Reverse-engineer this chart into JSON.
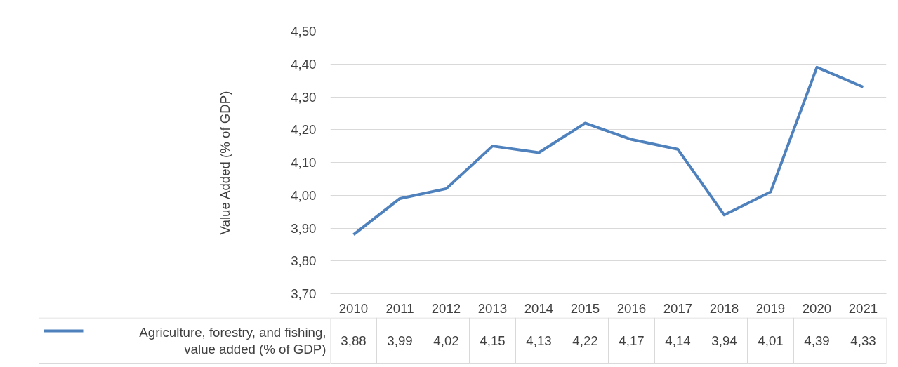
{
  "chart_data": {
    "type": "line",
    "ylabel": "Value Added (% of GDP)",
    "categories": [
      "2010",
      "2011",
      "2012",
      "2013",
      "2014",
      "2015",
      "2016",
      "2017",
      "2018",
      "2019",
      "2020",
      "2021"
    ],
    "series": [
      {
        "name": "Agriculture, forestry, and fishing, value added (% of GDP)",
        "color": "#4f81bd",
        "values": [
          3.88,
          3.99,
          4.02,
          4.15,
          4.13,
          4.22,
          4.17,
          4.14,
          3.94,
          4.01,
          4.39,
          4.33
        ],
        "value_labels": [
          "3,88",
          "3,99",
          "4,02",
          "4,15",
          "4,13",
          "4,22",
          "4,17",
          "4,14",
          "3,94",
          "4,01",
          "4,39",
          "4,33"
        ]
      }
    ],
    "ylim": [
      3.7,
      4.5
    ],
    "yticks": [
      {
        "value": 3.7,
        "label": "3,70"
      },
      {
        "value": 3.8,
        "label": "3,80"
      },
      {
        "value": 3.9,
        "label": "3,90"
      },
      {
        "value": 4.0,
        "label": "4,00"
      },
      {
        "value": 4.1,
        "label": "4,10"
      },
      {
        "value": 4.2,
        "label": "4,20"
      },
      {
        "value": 4.3,
        "label": "4,30"
      },
      {
        "value": 4.4,
        "label": "4,40"
      },
      {
        "value": 4.5,
        "label": "4,50"
      }
    ],
    "grid": "y",
    "legend": "bottom left",
    "line_style": "solid",
    "marker": "none"
  }
}
